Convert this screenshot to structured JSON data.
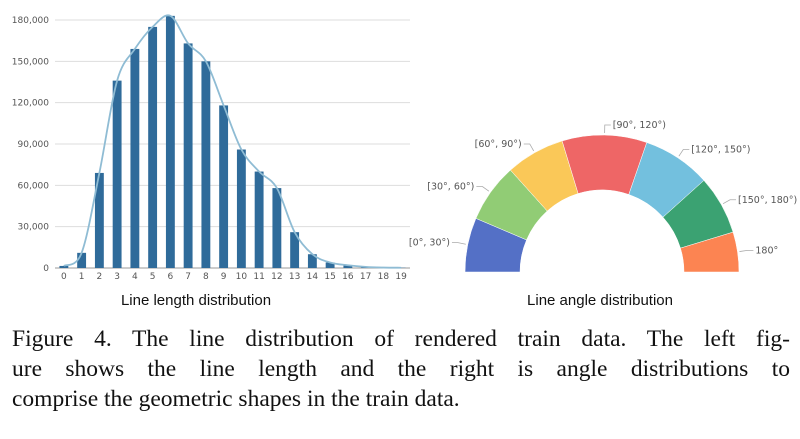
{
  "chart_data": [
    {
      "type": "bar",
      "title": "Line length distribution",
      "categories": [
        "0",
        "1",
        "2",
        "3",
        "4",
        "5",
        "6",
        "7",
        "8",
        "9",
        "10",
        "11",
        "12",
        "13",
        "14",
        "15",
        "16",
        "17",
        "18",
        "19"
      ],
      "values": [
        1500,
        11000,
        69000,
        136000,
        159000,
        175000,
        183000,
        163000,
        150000,
        118000,
        86000,
        70000,
        58000,
        26000,
        10000,
        4000,
        2000,
        800,
        300,
        200
      ],
      "yticks": [
        "0",
        "30,000",
        "60,000",
        "90,000",
        "120,000",
        "150,000",
        "180,000"
      ],
      "ytick_values": [
        0,
        30000,
        60000,
        90000,
        120000,
        150000,
        180000
      ],
      "ylim": [
        0,
        180000
      ],
      "grid": true,
      "overlay": "smoothed trend line",
      "colors": {
        "bar": "#2f6b9a",
        "line": "#8fbcd4",
        "grid": "#dddddd"
      }
    },
    {
      "type": "pie",
      "variant": "half-donut",
      "title": "Line angle distribution",
      "labels": [
        "[0°, 30°)",
        "[30°, 60°)",
        "[60°, 90°)",
        "[90°, 120°)",
        "[120°, 150°)",
        "[150°, 180°)",
        "180°"
      ],
      "values": [
        12.8,
        13.9,
        13.9,
        20.0,
        16.1,
        13.9,
        9.4
      ],
      "colors": [
        "#5470c6",
        "#91cc75",
        "#fac858",
        "#ee6666",
        "#73c0de",
        "#3ba272",
        "#fc8452"
      ]
    }
  ],
  "caption": {
    "lines": [
      "Figure 4. The line distribution of rendered train data. The left fig-",
      "ure shows the line length and the right is angle distributions to",
      "comprise the geometric shapes in the train data."
    ]
  }
}
